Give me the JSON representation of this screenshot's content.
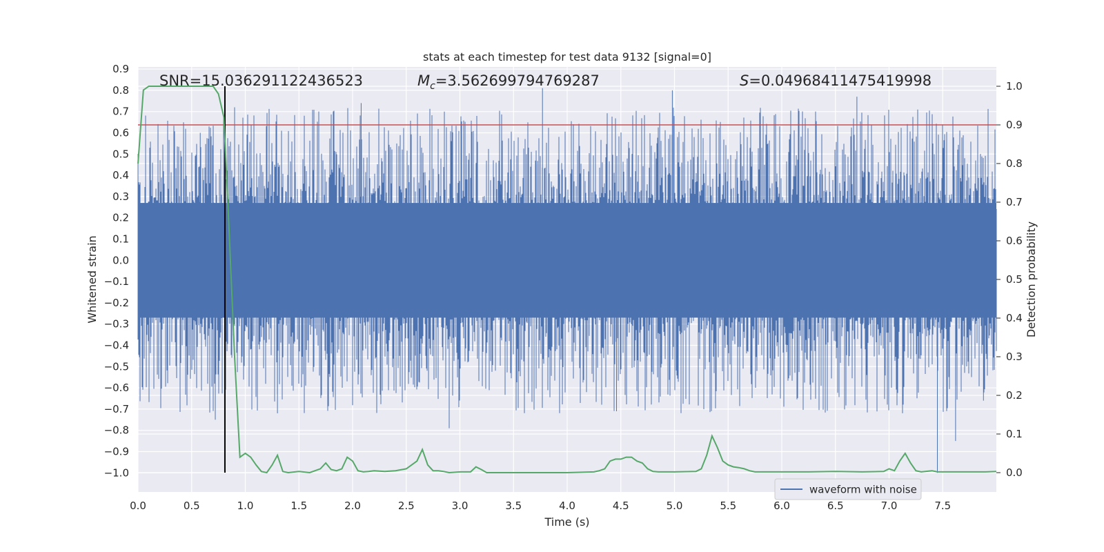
{
  "chart_data": {
    "type": "line",
    "title": "stats at each timestep for test data 9132 [signal=0]",
    "xlabel": "Time (s)",
    "ylabel": "Whitened strain",
    "y2label": "Detection probability",
    "xlim": [
      0.0,
      8.0
    ],
    "ylim": [
      -1.09,
      0.91
    ],
    "y2lim": [
      -0.05,
      1.05
    ],
    "xticks": [
      "0.0",
      "0.5",
      "1.0",
      "1.5",
      "2.0",
      "2.5",
      "3.0",
      "3.5",
      "4.0",
      "4.5",
      "5.0",
      "5.5",
      "6.0",
      "6.5",
      "7.0",
      "7.5"
    ],
    "yticks": [
      "0.9",
      "0.8",
      "0.7",
      "0.6",
      "0.5",
      "0.4",
      "0.3",
      "0.2",
      "0.1",
      "0.0",
      "−0.1",
      "−0.2",
      "−0.3",
      "−0.4",
      "−0.5",
      "−0.6",
      "−0.7",
      "−0.8",
      "−0.9",
      "−1.0"
    ],
    "y2ticks": [
      "1.0",
      "0.9",
      "0.8",
      "0.7",
      "0.6",
      "0.5",
      "0.4",
      "0.3",
      "0.2",
      "0.1",
      "0.0"
    ],
    "grid": true,
    "legend_position": "lower-right",
    "annotations": {
      "snr": "SNR=15.036291122436523",
      "mc_symbol": "M",
      "mc_sub": "c",
      "mc_value": "=3.562699794769287",
      "s_symbol": "S",
      "s_value": "=0.04968411475419998"
    },
    "threshold_probability": 0.9,
    "vline_time": 0.81,
    "series": [
      {
        "name": "waveform with noise",
        "axis": "left",
        "color": "#4c72b0",
        "style": "dense noise band, core approximately ±0.27, spikes up to about +0.81 and down to about −1.0"
      },
      {
        "axis": "right",
        "color": "#55a868",
        "x": [
          0.0,
          0.05,
          0.1,
          0.15,
          0.2,
          0.3,
          0.4,
          0.5,
          0.6,
          0.65,
          0.7,
          0.75,
          0.8,
          0.85,
          0.9,
          0.95,
          1.0,
          1.05,
          1.1,
          1.15,
          1.2,
          1.25,
          1.3,
          1.35,
          1.4,
          1.5,
          1.6,
          1.7,
          1.75,
          1.8,
          1.85,
          1.9,
          1.95,
          2.0,
          2.05,
          2.1,
          2.15,
          2.2,
          2.3,
          2.4,
          2.5,
          2.6,
          2.65,
          2.7,
          2.75,
          2.8,
          2.85,
          2.9,
          3.0,
          3.1,
          3.15,
          3.2,
          3.25,
          3.3,
          3.35,
          3.5,
          3.75,
          4.0,
          4.25,
          4.3,
          4.35,
          4.4,
          4.45,
          4.5,
          4.55,
          4.6,
          4.65,
          4.7,
          4.75,
          4.8,
          4.85,
          4.9,
          5.0,
          5.2,
          5.25,
          5.3,
          5.35,
          5.4,
          5.45,
          5.5,
          5.55,
          5.6,
          5.65,
          5.7,
          5.75,
          5.8,
          6.0,
          6.25,
          6.5,
          6.75,
          6.95,
          7.0,
          7.05,
          7.1,
          7.15,
          7.2,
          7.25,
          7.3,
          7.4,
          7.45,
          7.5,
          7.6,
          7.75,
          7.9,
          8.0
        ],
        "y": [
          0.8,
          0.99,
          1.0,
          1.0,
          1.0,
          1.0,
          1.0,
          1.0,
          1.0,
          1.0,
          1.0,
          0.98,
          0.92,
          0.62,
          0.3,
          0.04,
          0.05,
          0.04,
          0.02,
          0.003,
          0.0,
          0.02,
          0.045,
          0.003,
          0.0,
          0.003,
          0.0,
          0.01,
          0.025,
          0.008,
          0.005,
          0.01,
          0.04,
          0.03,
          0.005,
          0.002,
          0.003,
          0.005,
          0.003,
          0.005,
          0.01,
          0.03,
          0.06,
          0.02,
          0.005,
          0.005,
          0.003,
          0.0,
          0.002,
          0.002,
          0.015,
          0.008,
          0.0,
          0.0,
          0.0,
          0.0,
          0.0,
          0.0,
          0.002,
          0.005,
          0.01,
          0.03,
          0.035,
          0.035,
          0.04,
          0.04,
          0.03,
          0.025,
          0.01,
          0.003,
          0.002,
          0.002,
          0.002,
          0.003,
          0.01,
          0.045,
          0.095,
          0.065,
          0.03,
          0.02,
          0.015,
          0.013,
          0.01,
          0.005,
          0.002,
          0.002,
          0.002,
          0.002,
          0.003,
          0.002,
          0.003,
          0.01,
          0.005,
          0.03,
          0.05,
          0.025,
          0.005,
          0.002,
          0.005,
          0.002,
          0.002,
          0.002,
          0.002,
          0.002,
          0.003
        ]
      }
    ],
    "colors": {
      "background": "#eaeaf2",
      "grid": "#ffffff",
      "threshold": "#c44e52",
      "vline": "#000000"
    }
  }
}
